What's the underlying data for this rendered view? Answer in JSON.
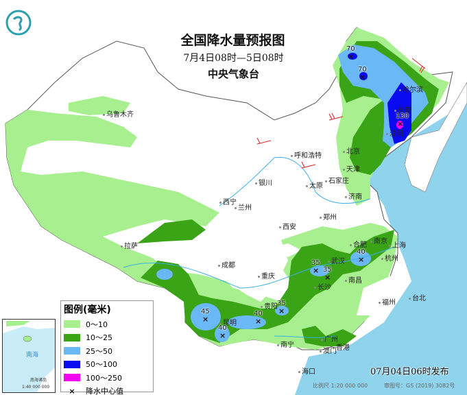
{
  "header": {
    "title": "全国降水量预报图",
    "period": "7月4日08时—5日08时",
    "issuer": "中央气象台"
  },
  "legend": {
    "title": "图例(毫米)",
    "items": [
      {
        "label": "0～10",
        "color": "#a8f08f"
      },
      {
        "label": "10～25",
        "color": "#3aa316"
      },
      {
        "label": "25～50",
        "color": "#6bb8f7"
      },
      {
        "label": "50～100",
        "color": "#0a0af0"
      },
      {
        "label": "100～250",
        "color": "#f400f4"
      }
    ],
    "center_label": "降水中心值",
    "center_symbol": "×"
  },
  "cities": [
    "乌鲁木齐",
    "哈尔滨",
    "长春",
    "沈阳",
    "北京",
    "天津",
    "石家庄",
    "呼和浩特",
    "太原",
    "济南",
    "银川",
    "西宁",
    "兰州",
    "郑州",
    "西安",
    "合肥",
    "南京",
    "上海",
    "武汉",
    "杭州",
    "成都",
    "重庆",
    "长沙",
    "南昌",
    "拉萨",
    "贵阳",
    "昆明",
    "福州",
    "台北",
    "南宁",
    "广州",
    "香港",
    "澳门",
    "海口"
  ],
  "centers": [
    "70",
    "70",
    "130",
    "35",
    "35",
    "40",
    "35",
    "45",
    "40",
    "40"
  ],
  "footer": {
    "issued": "07月04日06时发布",
    "scale": "比例尺 1:20 000 000",
    "approval": "审图号：GS (2019) 3082号"
  },
  "inset": {
    "sea": "南海",
    "islands": "南海诸岛",
    "scale": "1:40 000 000"
  }
}
